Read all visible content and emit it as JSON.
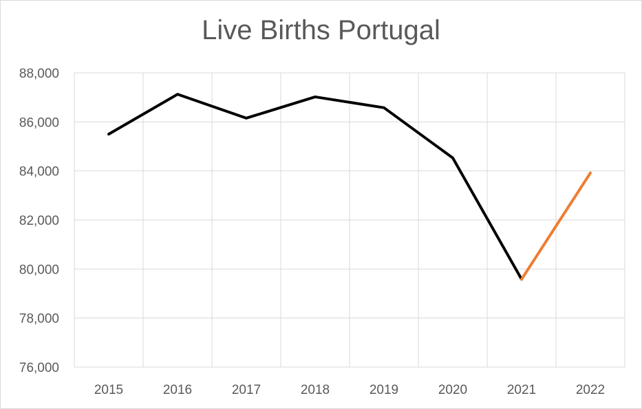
{
  "chart_data": {
    "type": "line",
    "title": "Live Births Portugal",
    "xlabel": "",
    "ylabel": "",
    "categories": [
      "2015",
      "2016",
      "2017",
      "2018",
      "2019",
      "2020",
      "2021",
      "2022"
    ],
    "series": [
      {
        "values": [
          85500,
          87126,
          86154,
          87020,
          86579,
          84530,
          79582,
          null
        ],
        "color": "#000000"
      },
      {
        "values": [
          null,
          null,
          null,
          null,
          null,
          null,
          79582,
          83918
        ],
        "color": "#ed7d31"
      }
    ],
    "ylim": [
      76000,
      88000
    ],
    "yticks": [
      76000,
      78000,
      80000,
      82000,
      84000,
      86000,
      88000
    ],
    "ytick_labels": [
      "76,000",
      "78,000",
      "80,000",
      "82,000",
      "84,000",
      "86,000",
      "88,000"
    ],
    "grid": true,
    "legend": "none"
  }
}
